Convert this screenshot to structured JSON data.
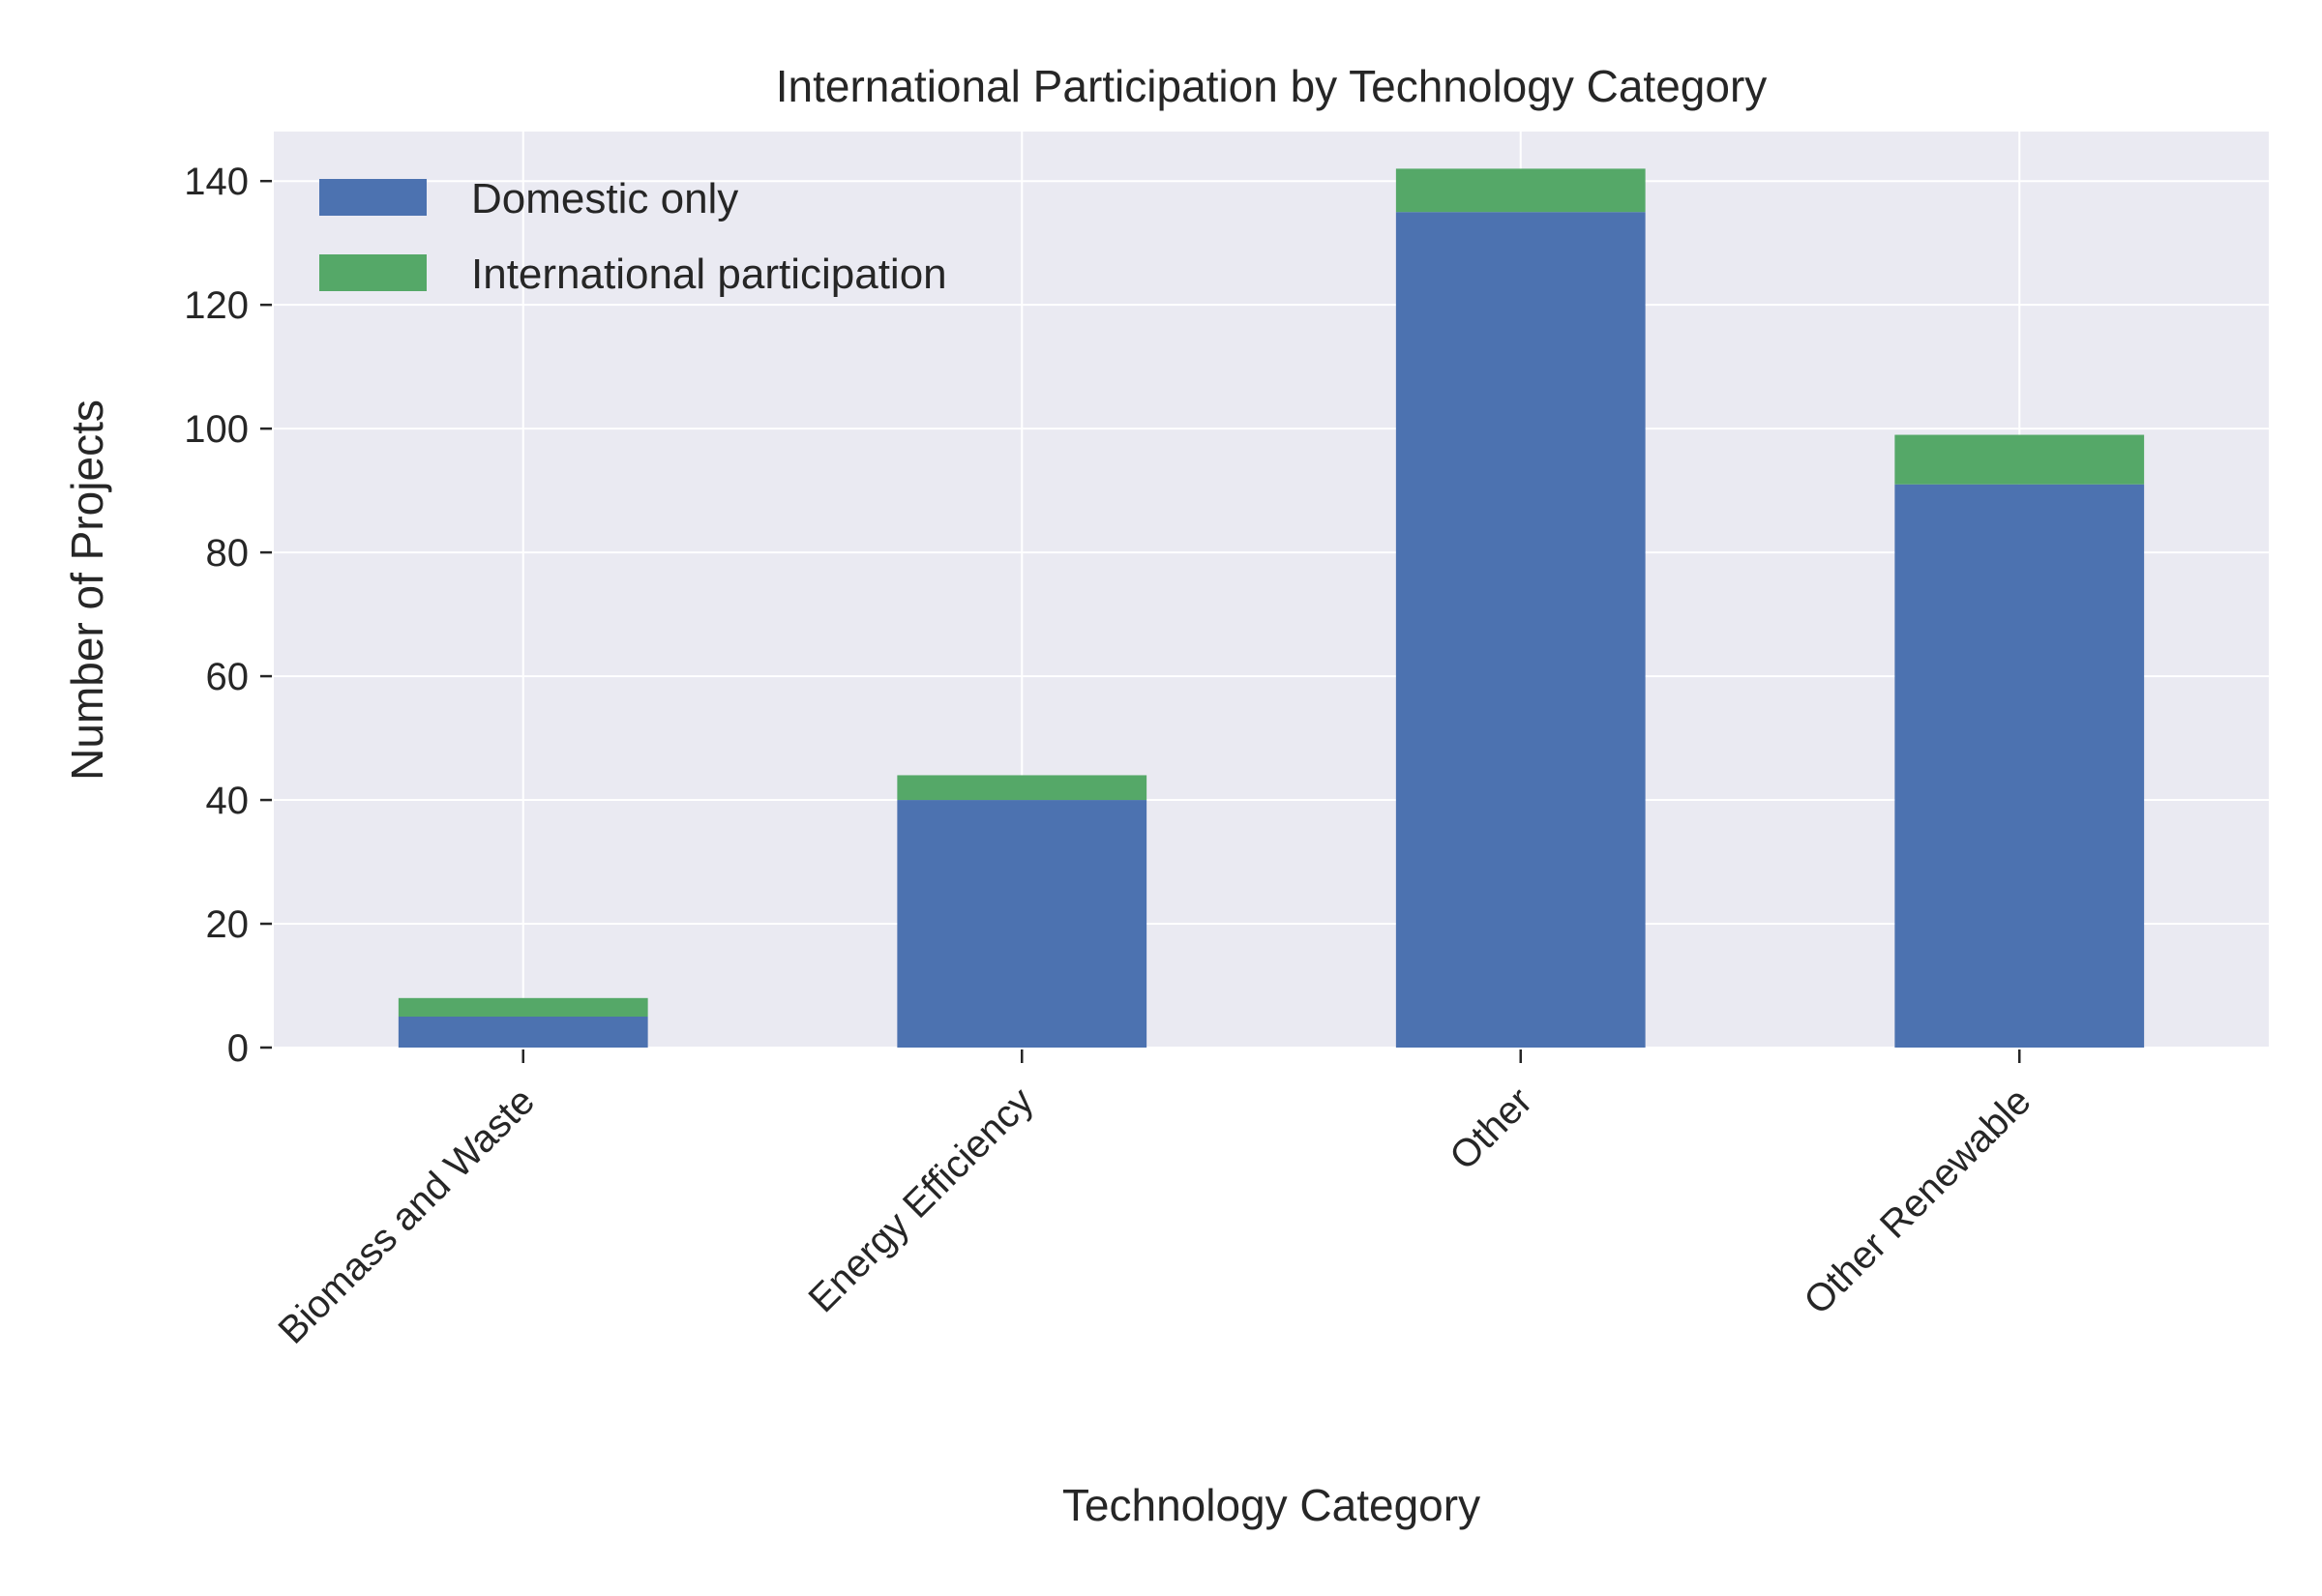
{
  "chart_data": {
    "type": "bar",
    "stacked": true,
    "title": "International Participation by Technology Category",
    "xlabel": "Technology Category",
    "ylabel": "Number of Projects",
    "categories": [
      "Biomass and Waste",
      "Energy Efficiency",
      "Other",
      "Other Renewable"
    ],
    "series": [
      {
        "name": "Domestic only",
        "values": [
          5,
          40,
          135,
          91
        ],
        "color": "#4c72b0"
      },
      {
        "name": "International participation",
        "values": [
          3,
          4,
          7,
          8
        ],
        "color": "#55a868"
      }
    ],
    "ylim": [
      0,
      148
    ],
    "yticks": [
      0,
      20,
      40,
      60,
      80,
      100,
      120,
      140
    ],
    "grid": true,
    "legend": "top-left",
    "background": "#eaeaf2"
  }
}
